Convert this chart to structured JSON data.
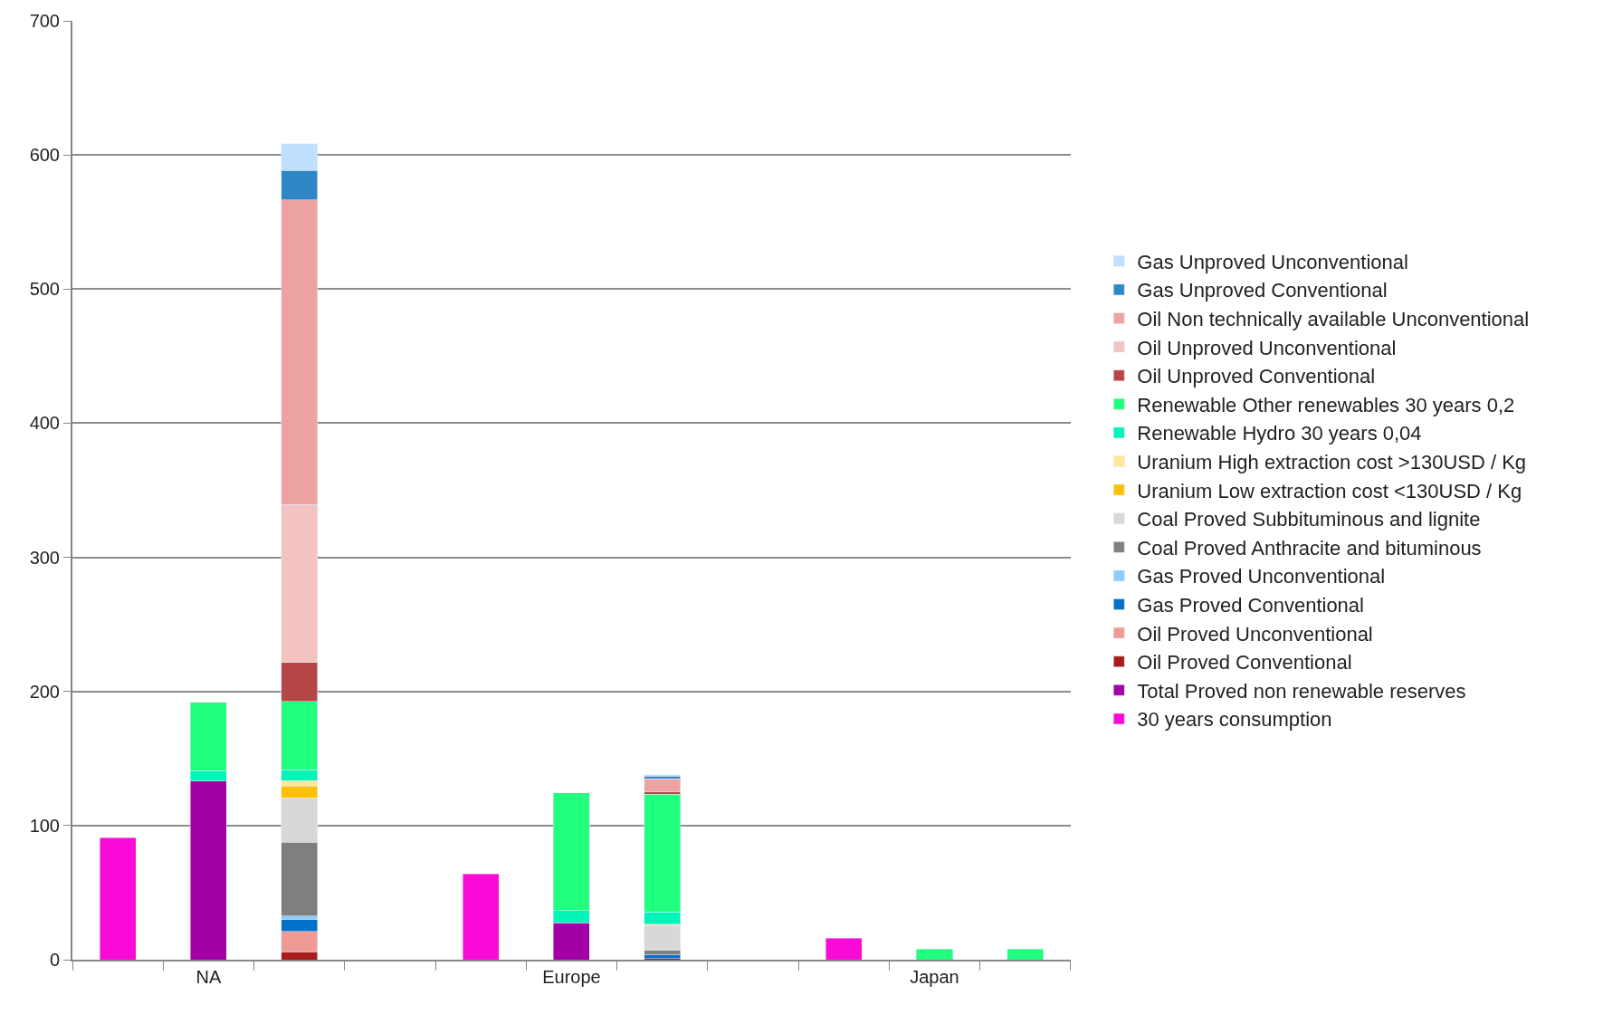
{
  "chart_data": {
    "type": "bar",
    "stacked": true,
    "categories": [
      null,
      "NA",
      null,
      null,
      null,
      "Europe",
      null,
      null,
      null,
      "Japan",
      null
    ],
    "ylim": [
      0,
      700
    ],
    "yticks": [
      0,
      100,
      200,
      300,
      400,
      500,
      600,
      700
    ],
    "grid": "y",
    "legend": "right",
    "series": [
      {
        "name": "30 years consumption",
        "color": "#f90ad6",
        "values": [
          91,
          null,
          null,
          null,
          64,
          null,
          null,
          null,
          16,
          null,
          null
        ]
      },
      {
        "name": "Total Proved non renewable reserves",
        "color": "#a200a6",
        "values": [
          null,
          133,
          null,
          null,
          null,
          27.5,
          null,
          null,
          null,
          null,
          null
        ]
      },
      {
        "name": "Oil Proved Conventional",
        "color": "#a81c1c",
        "values": [
          null,
          null,
          6,
          null,
          null,
          null,
          1,
          null,
          null,
          null,
          null
        ]
      },
      {
        "name": "Oil Proved Unconventional",
        "color": "#ef9a94",
        "values": [
          null,
          null,
          15,
          null,
          null,
          null,
          null,
          null,
          null,
          null,
          null
        ]
      },
      {
        "name": "Gas Proved Conventional",
        "color": "#0070c8",
        "values": [
          null,
          null,
          9,
          null,
          null,
          null,
          3,
          null,
          null,
          null,
          null
        ]
      },
      {
        "name": "Gas Proved Unconventional",
        "color": "#8ecbff",
        "values": [
          null,
          null,
          2.5,
          null,
          null,
          null,
          null,
          null,
          null,
          null,
          null
        ]
      },
      {
        "name": "Coal Proved Anthracite and bituminous",
        "color": "#7f7f7f",
        "values": [
          null,
          null,
          55,
          null,
          null,
          null,
          3,
          null,
          null,
          null,
          null
        ]
      },
      {
        "name": "Coal Proved Subbituminous and lignite",
        "color": "#d8d8d8",
        "values": [
          null,
          null,
          33,
          null,
          null,
          null,
          18.5,
          null,
          null,
          null,
          null
        ]
      },
      {
        "name": "Uranium Low extraction cost <130USD / Kg",
        "color": "#ffc000",
        "values": [
          null,
          null,
          9,
          null,
          null,
          null,
          0.5,
          null,
          null,
          null,
          null
        ]
      },
      {
        "name": "Uranium High extraction cost >130USD / Kg",
        "color": "#ffe699",
        "values": [
          null,
          null,
          4,
          null,
          null,
          null,
          0.5,
          null,
          null,
          null,
          null
        ]
      },
      {
        "name": "Renewable Hydro 30 years 0,04",
        "color": "#00f5b8",
        "values": [
          null,
          8,
          8,
          null,
          null,
          9,
          9,
          null,
          null,
          null,
          null
        ]
      },
      {
        "name": "Renewable Other renewables 30 years 0,2",
        "color": "#20ff80",
        "values": [
          null,
          51,
          51,
          null,
          null,
          88,
          88,
          null,
          null,
          8,
          8
        ]
      },
      {
        "name": "Oil Unproved Conventional",
        "color": "#b84545",
        "values": [
          null,
          null,
          29,
          null,
          null,
          null,
          1.5,
          null,
          null,
          null,
          null
        ]
      },
      {
        "name": "Oil Unproved Unconventional",
        "color": "#f5c2c2",
        "values": [
          null,
          null,
          118,
          null,
          null,
          null,
          null,
          null,
          null,
          null,
          null
        ]
      },
      {
        "name": "Oil Non technically available Unconventional",
        "color": "#eea3a3",
        "values": [
          null,
          null,
          227,
          null,
          null,
          null,
          10,
          null,
          null,
          null,
          null
        ]
      },
      {
        "name": "Gas Unproved Conventional",
        "color": "#2f87c8",
        "values": [
          null,
          null,
          22,
          null,
          null,
          null,
          2,
          null,
          null,
          null,
          null
        ]
      },
      {
        "name": "Gas Unproved Unconventional",
        "color": "#bfe0ff",
        "values": [
          null,
          null,
          20,
          null,
          null,
          null,
          1,
          null,
          null,
          null,
          null
        ]
      }
    ]
  }
}
